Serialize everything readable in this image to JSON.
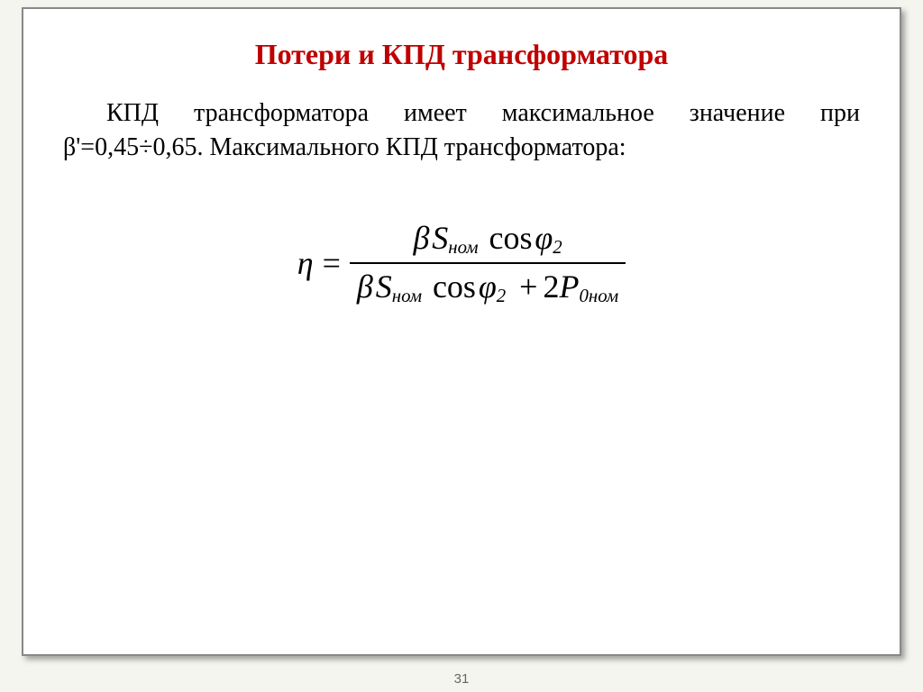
{
  "title": {
    "text": "Потери и КПД трансформатора",
    "color": "#c00000",
    "fontsize": 32
  },
  "body": {
    "text": "КПД трансформатора имеет максимальное значение при β'=0,45÷0,65. Максимального КПД трансформатора:",
    "color": "#000000",
    "fontsize": 28
  },
  "formula": {
    "lhs": "η",
    "num": {
      "beta": "β",
      "S": "S",
      "S_sub": "ном",
      "cos": "cos",
      "phi": "φ",
      "phi_sub": "2"
    },
    "den": {
      "beta": "β",
      "S": "S",
      "S_sub": "ном",
      "cos": "cos",
      "phi": "φ",
      "phi_sub": "2",
      "plus": "+",
      "two": "2",
      "P": "P",
      "P_sub": "0ном"
    },
    "fontsize": 36,
    "color": "#000000"
  },
  "page_number": "31"
}
